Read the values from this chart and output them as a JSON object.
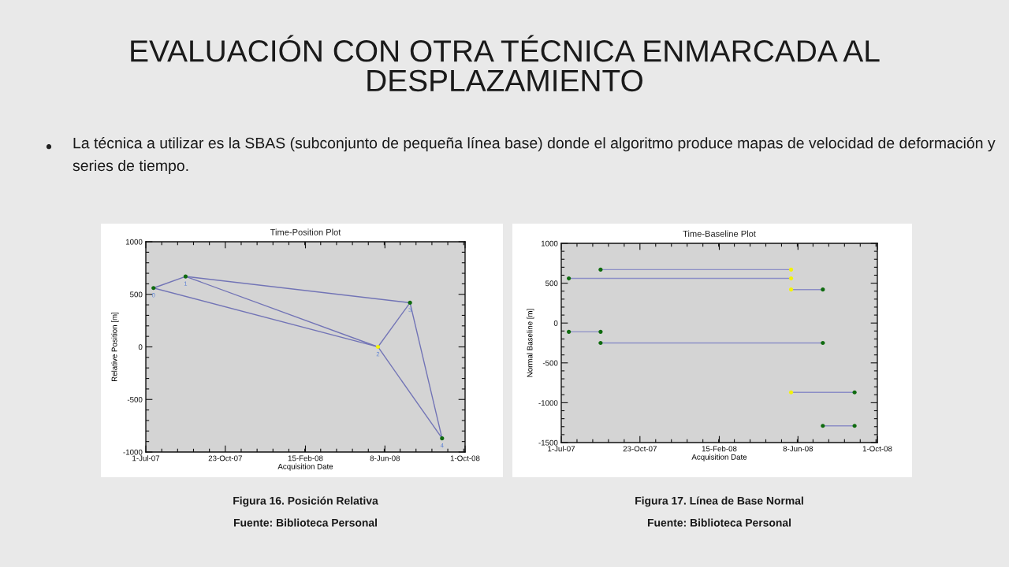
{
  "chart_data": [
    {
      "type": "other",
      "title": "EVALUACIÓN CON OTRA TÉCNICA ENMARCADA AL DESPLAZAMIENTO",
      "annotations": [
        "La técnica a utilizar es la SBAS (subconjunto de pequeña línea base) donde el algoritmo produce mapas de velocidad de deformación y series de tiempo."
      ]
    },
    {
      "type": "line",
      "title": "Time-Position Plot",
      "xlabel": "Acquisition Date",
      "ylabel": "Relative Position [m]",
      "xlim": [
        "2007-07-01",
        "2008-10-01"
      ],
      "xticks": [
        {
          "value": "2007-07-01",
          "label": "1-Jul-07"
        },
        {
          "value": "2007-10-23",
          "label": "23-Oct-07"
        },
        {
          "value": "2008-02-15",
          "label": "15-Feb-08"
        },
        {
          "value": "2008-06-08",
          "label": "8-Jun-08"
        },
        {
          "value": "2008-10-01",
          "label": "1-Oct-08"
        }
      ],
      "ylim": [
        -1000,
        1000
      ],
      "yticks": [
        -1000,
        -500,
        0,
        500,
        1000
      ],
      "series": [
        {
          "type": "line",
          "color": "#7274b6",
          "x": [
            "2007-07-12",
            "2007-08-27"
          ],
          "values": [
            560,
            670
          ]
        },
        {
          "type": "line",
          "color": "#7274b6",
          "x": [
            "2007-07-12",
            "2008-05-29"
          ],
          "values": [
            560,
            0
          ]
        },
        {
          "type": "line",
          "color": "#7274b6",
          "x": [
            "2007-08-27",
            "2008-05-29"
          ],
          "values": [
            670,
            0
          ]
        },
        {
          "type": "line",
          "color": "#7274b6",
          "x": [
            "2007-08-27",
            "2008-07-14"
          ],
          "values": [
            670,
            420
          ]
        },
        {
          "type": "line",
          "color": "#7274b6",
          "x": [
            "2008-05-29",
            "2008-07-14"
          ],
          "values": [
            0,
            420
          ]
        },
        {
          "type": "line",
          "color": "#7274b6",
          "x": [
            "2008-05-29",
            "2008-08-29"
          ],
          "values": [
            0,
            -870
          ]
        },
        {
          "type": "line",
          "color": "#7274b6",
          "x": [
            "2008-07-14",
            "2008-08-29"
          ],
          "values": [
            420,
            -870
          ]
        },
        {
          "type": "scatter",
          "marker": "circle",
          "x": [
            "2007-07-12",
            "2007-08-27",
            "2008-05-29",
            "2008-07-14",
            "2008-08-29"
          ],
          "values": [
            560,
            670,
            0,
            420,
            -870
          ],
          "colors": [
            "#0f6b0f",
            "#0f6b0f",
            "#f2f20a",
            "#0f6b0f",
            "#0f6b0f"
          ]
        }
      ],
      "annotations": [
        {
          "text": "0",
          "x": "2007-07-12",
          "y": 560
        },
        {
          "text": "1",
          "x": "2007-08-27",
          "y": 670
        },
        {
          "text": "2",
          "x": "2008-05-29",
          "y": 0
        },
        {
          "text": "3",
          "x": "2008-07-14",
          "y": 420
        },
        {
          "text": "4",
          "x": "2008-08-29",
          "y": -870
        },
        "Figura 16. Posición Relativa",
        "Fuente: Biblioteca Personal"
      ]
    },
    {
      "type": "line",
      "title": "Time-Baseline Plot",
      "xlabel": "Acquisition Date",
      "ylabel": "Normal Baseline [m]",
      "xlim": [
        "2007-07-01",
        "2008-10-01"
      ],
      "xticks": [
        {
          "value": "2007-07-01",
          "label": "1-Jul-07"
        },
        {
          "value": "2007-10-23",
          "label": "23-Oct-07"
        },
        {
          "value": "2008-02-15",
          "label": "15-Feb-08"
        },
        {
          "value": "2008-06-08",
          "label": "8-Jun-08"
        },
        {
          "value": "2008-10-01",
          "label": "1-Oct-08"
        }
      ],
      "ylim": [
        -1500,
        1000
      ],
      "yticks": [
        -1500,
        -1000,
        -500,
        0,
        500,
        1000
      ],
      "series": [
        {
          "type": "line",
          "color": "#8c8ec6",
          "x": [
            "2007-08-27",
            "2008-05-29"
          ],
          "values": [
            670,
            670
          ]
        },
        {
          "type": "line",
          "color": "#8c8ec6",
          "x": [
            "2007-07-12",
            "2008-05-29"
          ],
          "values": [
            560,
            560
          ]
        },
        {
          "type": "line",
          "color": "#8c8ec6",
          "x": [
            "2008-05-29",
            "2008-07-14"
          ],
          "values": [
            420,
            420
          ]
        },
        {
          "type": "line",
          "color": "#8c8ec6",
          "x": [
            "2007-07-12",
            "2007-08-27"
          ],
          "values": [
            -110,
            -110
          ]
        },
        {
          "type": "line",
          "color": "#8c8ec6",
          "x": [
            "2007-08-27",
            "2008-07-14"
          ],
          "values": [
            -250,
            -250
          ]
        },
        {
          "type": "line",
          "color": "#8c8ec6",
          "x": [
            "2008-05-29",
            "2008-08-29"
          ],
          "values": [
            -870,
            -870
          ]
        },
        {
          "type": "line",
          "color": "#8c8ec6",
          "x": [
            "2008-07-14",
            "2008-08-29"
          ],
          "values": [
            -1290,
            -1290
          ]
        },
        {
          "type": "scatter",
          "marker": "circle",
          "x": [
            "2007-08-27",
            "2008-05-29",
            "2007-07-12",
            "2008-05-29",
            "2008-05-29",
            "2008-07-14",
            "2007-07-12",
            "2007-08-27",
            "2007-08-27",
            "2008-07-14",
            "2008-05-29",
            "2008-08-29",
            "2008-07-14",
            "2008-08-29"
          ],
          "values": [
            670,
            670,
            560,
            560,
            420,
            420,
            -110,
            -110,
            -250,
            -250,
            -870,
            -870,
            -1290,
            -1290
          ],
          "colors": [
            "#0f6b0f",
            "#f2f20a",
            "#0f6b0f",
            "#f2f20a",
            "#f2f20a",
            "#0f6b0f",
            "#0f6b0f",
            "#0f6b0f",
            "#0f6b0f",
            "#0f6b0f",
            "#f2f20a",
            "#0f6b0f",
            "#0f6b0f",
            "#0f6b0f"
          ]
        }
      ],
      "annotations": [
        "Figura 17. Línea de Base Normal",
        "Fuente: Biblioteca Personal"
      ]
    }
  ]
}
